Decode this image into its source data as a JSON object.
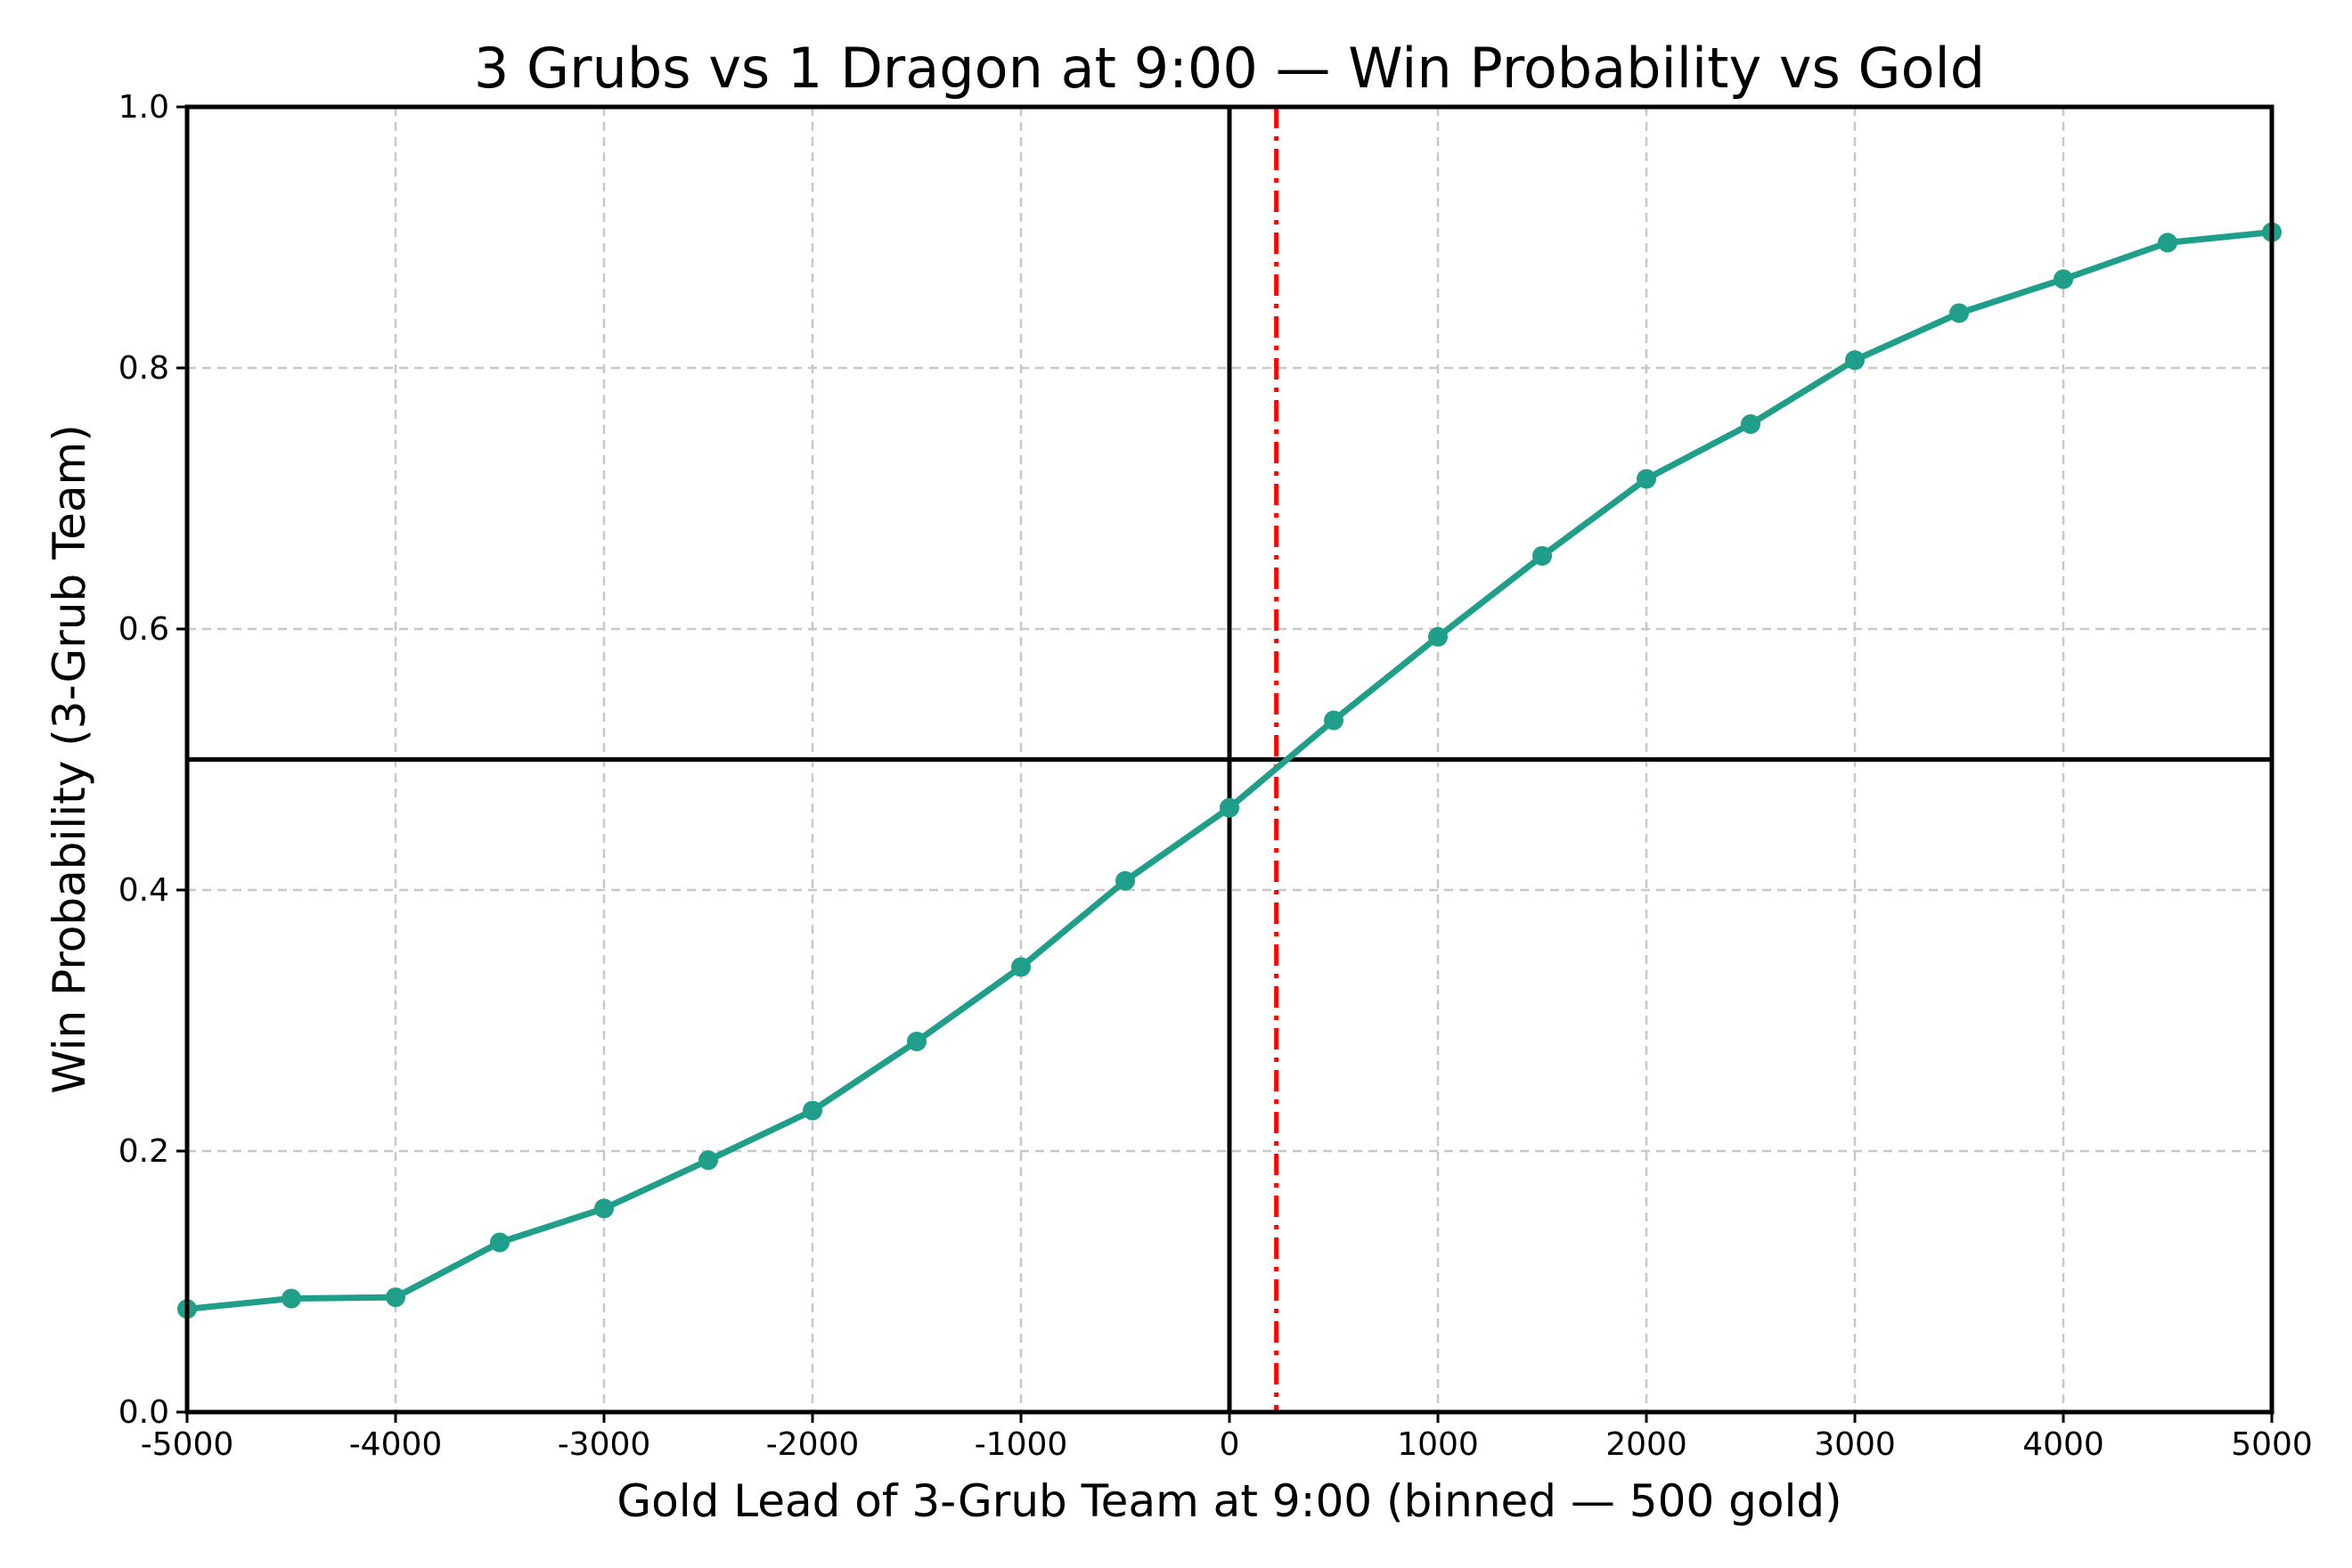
{
  "chart_data": {
    "type": "line",
    "title": "3 Grubs vs 1 Dragon at 9:00 — Win Probability vs Gold",
    "xlabel": "Gold Lead of 3-Grub Team at 9:00 (binned — 500 gold)",
    "ylabel": "Win Probability (3-Grub Team)",
    "xlim": [
      -5000,
      5000
    ],
    "ylim": [
      0.0,
      1.0
    ],
    "xticks": [
      -5000,
      -4000,
      -3000,
      -2000,
      -1000,
      0,
      1000,
      2000,
      3000,
      4000,
      5000
    ],
    "xtick_labels": [
      "-5000",
      "-4000",
      "-3000",
      "-2000",
      "-1000",
      "0",
      "1000",
      "2000",
      "3000",
      "4000",
      "5000"
    ],
    "yticks": [
      0.0,
      0.2,
      0.4,
      0.6,
      0.8,
      1.0
    ],
    "ytick_labels": [
      "0.0",
      "0.2",
      "0.4",
      "0.6",
      "0.8",
      "1.0"
    ],
    "grid": true,
    "series": [
      {
        "x": [
          -5000,
          -4500,
          -4000,
          -3500,
          -3000,
          -2500,
          -2000,
          -1500,
          -1000,
          -500,
          0,
          500,
          1000,
          1500,
          2000,
          2500,
          3000,
          3500,
          4000,
          4500,
          5000
        ],
        "y": [
          0.079,
          0.087,
          0.088,
          0.13,
          0.156,
          0.193,
          0.231,
          0.284,
          0.341,
          0.407,
          0.463,
          0.53,
          0.594,
          0.656,
          0.715,
          0.757,
          0.806,
          0.842,
          0.868,
          0.896,
          0.904
        ],
        "color": "#1f9e89"
      }
    ],
    "reference_lines": [
      {
        "orientation": "horizontal",
        "value": 0.5,
        "color": "#000000",
        "style": "solid"
      },
      {
        "orientation": "vertical",
        "value": 0,
        "color": "#000000",
        "style": "solid"
      },
      {
        "orientation": "vertical",
        "value": 225,
        "color": "#ff0000",
        "style": "dashdot"
      }
    ]
  }
}
